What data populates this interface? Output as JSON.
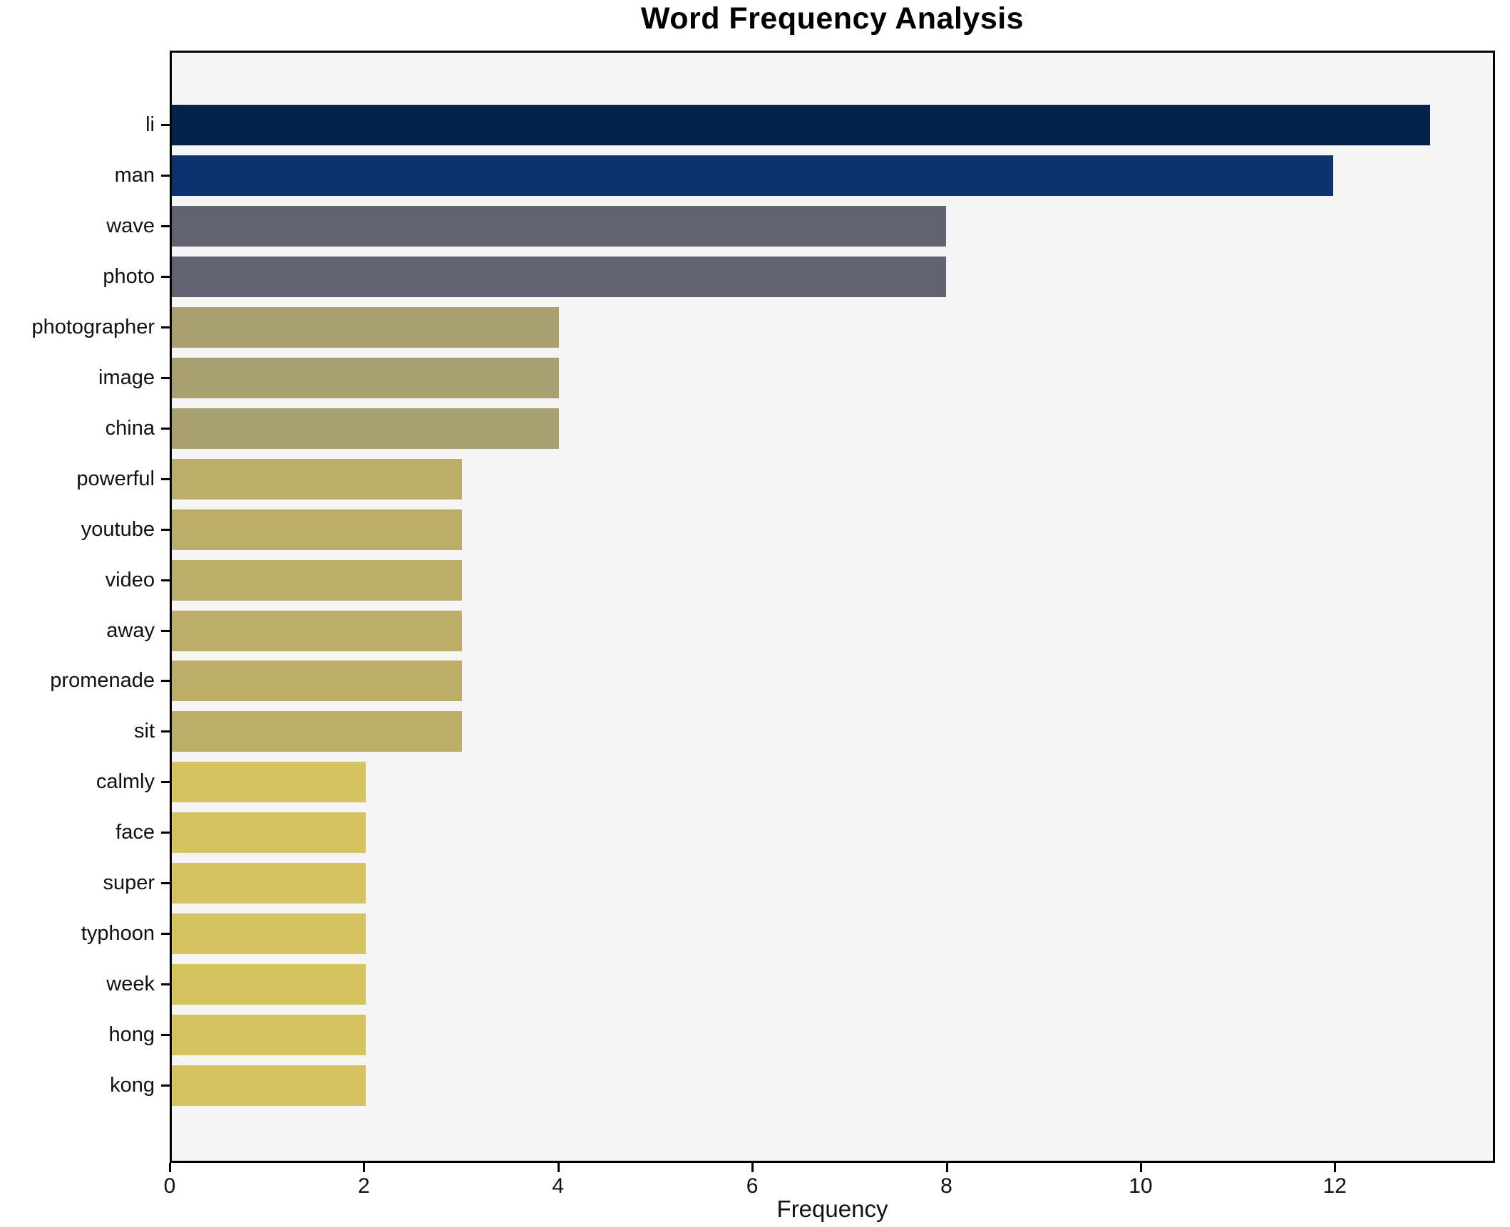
{
  "title": "Word Frequency Analysis",
  "chart_data": {
    "type": "bar",
    "orientation": "horizontal",
    "title": "Word Frequency Analysis",
    "xlabel": "Frequency",
    "ylabel": "",
    "categories": [
      "li",
      "man",
      "wave",
      "photo",
      "photographer",
      "image",
      "china",
      "powerful",
      "youtube",
      "video",
      "away",
      "promenade",
      "sit",
      "calmly",
      "face",
      "super",
      "typhoon",
      "week",
      "hong",
      "kong"
    ],
    "values": [
      13,
      12,
      8,
      8,
      4,
      4,
      4,
      3,
      3,
      3,
      3,
      3,
      3,
      2,
      2,
      2,
      2,
      2,
      2,
      2
    ],
    "bar_colors": [
      "#04234b",
      "#0d336f",
      "#616470",
      "#616470",
      "#a9a071",
      "#a9a071",
      "#a9a071",
      "#bcae68",
      "#bcae68",
      "#bcae68",
      "#bcae68",
      "#bcae68",
      "#bcae68",
      "#d4c360",
      "#d4c360",
      "#d4c360",
      "#d4c360",
      "#d4c360",
      "#d4c360",
      "#d4c360"
    ],
    "x_ticks": [
      0,
      2,
      4,
      6,
      8,
      10,
      12
    ],
    "xlim": [
      0,
      13.65
    ],
    "grid": false,
    "legend_position": "none",
    "plot_background": "#f5f5f6",
    "figure_background": "#ffffff",
    "axis_color": "#000000"
  }
}
